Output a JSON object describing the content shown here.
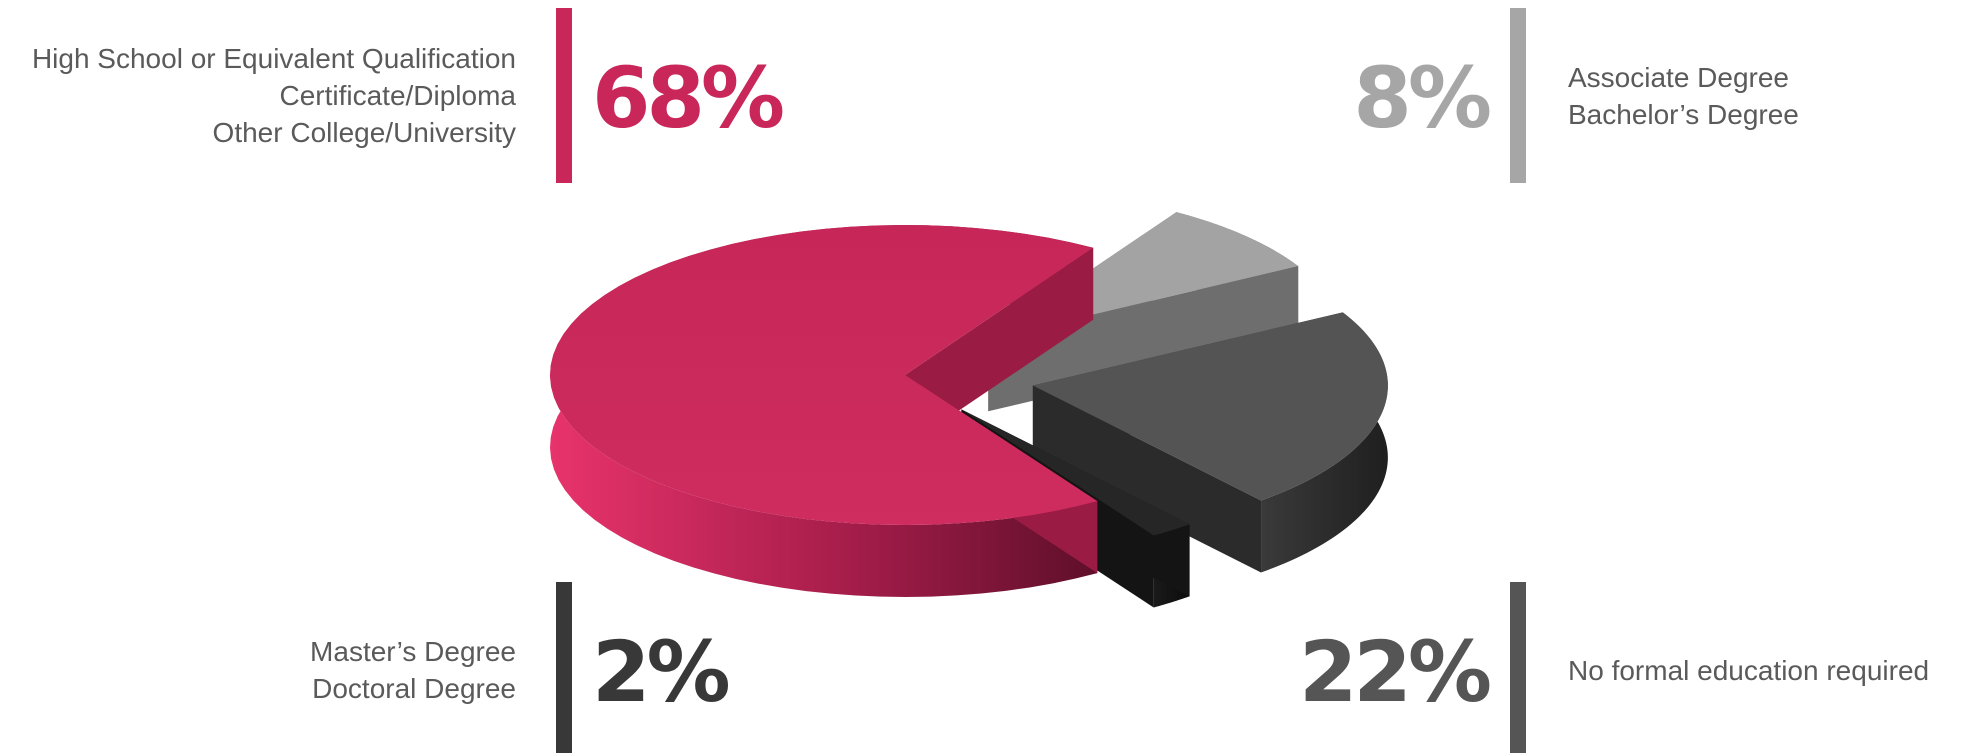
{
  "chart_data": {
    "type": "pie",
    "title": "",
    "slices": [
      {
        "value": 68,
        "value_label": "68%",
        "labels": [
          "High School or Equivalent Qualification",
          "Certificate/Diploma",
          "Other College/University"
        ],
        "color": "#c9265a"
      },
      {
        "value": 8,
        "value_label": "8%",
        "labels": [
          "Associate Degree",
          "Bachelor’s Degree"
        ],
        "color": "#a6a6a6"
      },
      {
        "value": 22,
        "value_label": "22%",
        "labels": [
          "No formal education required"
        ],
        "color": "#555555"
      },
      {
        "value": 2,
        "value_label": "2%",
        "labels": [
          "Master’s Degree",
          "Doctoral Degree"
        ],
        "color": "#262626"
      }
    ]
  }
}
